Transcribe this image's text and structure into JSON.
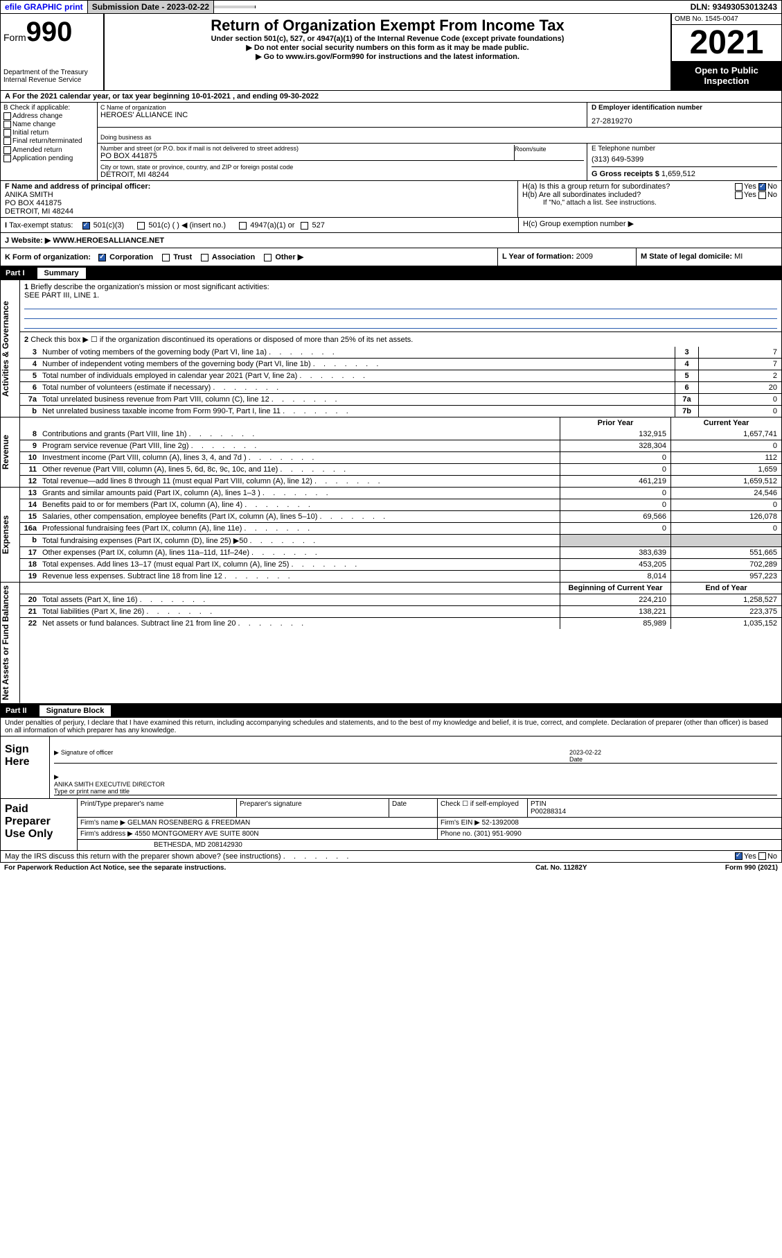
{
  "topbar": {
    "efile": "efile GRAPHIC print",
    "submission_label": "Submission Date - ",
    "submission_date": "2023-02-22",
    "dln_label": "DLN: ",
    "dln": "93493053013243"
  },
  "header": {
    "form_label": "Form",
    "form_num": "990",
    "dept": "Department of the Treasury\nInternal Revenue Service",
    "title": "Return of Organization Exempt From Income Tax",
    "subtitle": "Under section 501(c), 527, or 4947(a)(1) of the Internal Revenue Code (except private foundations)",
    "ssn_warn": "▶ Do not enter social security numbers on this form as it may be made public.",
    "goto": "▶ Go to www.irs.gov/Form990 for instructions and the latest information.",
    "omb": "OMB No. 1545-0047",
    "year": "2021",
    "open": "Open to Public Inspection"
  },
  "A": {
    "text": "For the 2021 calendar year, or tax year beginning 10-01-2021    , and ending 09-30-2022"
  },
  "B": {
    "header": "B Check if applicable:",
    "items": [
      "Address change",
      "Name change",
      "Initial return",
      "Final return/terminated",
      "Amended return",
      "Application pending"
    ]
  },
  "C": {
    "name_label": "C Name of organization",
    "name": "HEROES' ALLIANCE INC",
    "dba_label": "Doing business as",
    "street_label": "Number and street (or P.O. box if mail is not delivered to street address)",
    "room_label": "Room/suite",
    "street": "PO BOX 441875",
    "city_label": "City or town, state or province, country, and ZIP or foreign postal code",
    "city": "DETROIT, MI  48244"
  },
  "D": {
    "label": "D Employer identification number",
    "value": "27-2819270"
  },
  "E": {
    "label": "E Telephone number",
    "value": "(313) 649-5399"
  },
  "G": {
    "label": "G Gross receipts $",
    "value": "1,659,512"
  },
  "F": {
    "label": "F  Name and address of principal officer:",
    "name": "ANIKA SMITH",
    "street": "PO BOX 441875",
    "city": "DETROIT, MI  48244"
  },
  "H": {
    "a": "H(a)  Is this a group return for subordinates?",
    "a_yes": "Yes",
    "a_no": "No",
    "b": "H(b)  Are all subordinates included?",
    "b_yes": "Yes",
    "b_no": "No",
    "b_note": "If \"No,\" attach a list. See instructions.",
    "c": "H(c)  Group exemption number ▶"
  },
  "I": {
    "label": "Tax-exempt status:",
    "opts": [
      "501(c)(3)",
      "501(c) (  ) ◀ (insert no.)",
      "4947(a)(1) or",
      "527"
    ]
  },
  "J": {
    "label": "Website: ▶",
    "value": "WWW.HEROESALLIANCE.NET"
  },
  "K": {
    "label": "K Form of organization:",
    "opts": [
      "Corporation",
      "Trust",
      "Association",
      "Other ▶"
    ]
  },
  "L": {
    "label": "L Year of formation:",
    "value": "2009"
  },
  "M": {
    "label": "M State of legal domicile:",
    "value": "MI"
  },
  "partI": {
    "label": "Part I",
    "title": "Summary"
  },
  "summary": {
    "sections": {
      "gov": "Activities & Governance",
      "rev": "Revenue",
      "exp": "Expenses",
      "net": "Net Assets or Fund Balances"
    },
    "line1_label": "Briefly describe the organization's mission or most significant activities:",
    "line1_text": "SEE PART III, LINE 1.",
    "line2": "Check this box ▶ ☐  if the organization discontinued its operations or disposed of more than 25% of its net assets.",
    "lines_gov": [
      {
        "n": "3",
        "t": "Number of voting members of the governing body (Part VI, line 1a)",
        "box": "3",
        "v": "7"
      },
      {
        "n": "4",
        "t": "Number of independent voting members of the governing body (Part VI, line 1b)",
        "box": "4",
        "v": "7"
      },
      {
        "n": "5",
        "t": "Total number of individuals employed in calendar year 2021 (Part V, line 2a)",
        "box": "5",
        "v": "2"
      },
      {
        "n": "6",
        "t": "Total number of volunteers (estimate if necessary)",
        "box": "6",
        "v": "20"
      },
      {
        "n": "7a",
        "t": "Total unrelated business revenue from Part VIII, column (C), line 12",
        "box": "7a",
        "v": "0"
      },
      {
        "n": "b",
        "t": "Net unrelated business taxable income from Form 990-T, Part I, line 11",
        "box": "7b",
        "v": "0"
      }
    ],
    "col_hdr": {
      "prior": "Prior Year",
      "current": "Current Year"
    },
    "lines_rev": [
      {
        "n": "8",
        "t": "Contributions and grants (Part VIII, line 1h)",
        "p": "132,915",
        "c": "1,657,741"
      },
      {
        "n": "9",
        "t": "Program service revenue (Part VIII, line 2g)",
        "p": "328,304",
        "c": "0"
      },
      {
        "n": "10",
        "t": "Investment income (Part VIII, column (A), lines 3, 4, and 7d )",
        "p": "0",
        "c": "112"
      },
      {
        "n": "11",
        "t": "Other revenue (Part VIII, column (A), lines 5, 6d, 8c, 9c, 10c, and 11e)",
        "p": "0",
        "c": "1,659"
      },
      {
        "n": "12",
        "t": "Total revenue—add lines 8 through 11 (must equal Part VIII, column (A), line 12)",
        "p": "461,219",
        "c": "1,659,512"
      }
    ],
    "lines_exp": [
      {
        "n": "13",
        "t": "Grants and similar amounts paid (Part IX, column (A), lines 1–3 )",
        "p": "0",
        "c": "24,546"
      },
      {
        "n": "14",
        "t": "Benefits paid to or for members (Part IX, column (A), line 4)",
        "p": "0",
        "c": "0"
      },
      {
        "n": "15",
        "t": "Salaries, other compensation, employee benefits (Part IX, column (A), lines 5–10)",
        "p": "69,566",
        "c": "126,078"
      },
      {
        "n": "16a",
        "t": "Professional fundraising fees (Part IX, column (A), line 11e)",
        "p": "0",
        "c": "0"
      },
      {
        "n": "b",
        "t": "Total fundraising expenses (Part IX, column (D), line 25) ▶50",
        "p": "",
        "c": "",
        "shade": true
      },
      {
        "n": "17",
        "t": "Other expenses (Part IX, column (A), lines 11a–11d, 11f–24e)",
        "p": "383,639",
        "c": "551,665"
      },
      {
        "n": "18",
        "t": "Total expenses. Add lines 13–17 (must equal Part IX, column (A), line 25)",
        "p": "453,205",
        "c": "702,289"
      },
      {
        "n": "19",
        "t": "Revenue less expenses. Subtract line 18 from line 12",
        "p": "8,014",
        "c": "957,223"
      }
    ],
    "net_hdr": {
      "begin": "Beginning of Current Year",
      "end": "End of Year"
    },
    "lines_net": [
      {
        "n": "20",
        "t": "Total assets (Part X, line 16)",
        "p": "224,210",
        "c": "1,258,527"
      },
      {
        "n": "21",
        "t": "Total liabilities (Part X, line 26)",
        "p": "138,221",
        "c": "223,375"
      },
      {
        "n": "22",
        "t": "Net assets or fund balances. Subtract line 21 from line 20",
        "p": "85,989",
        "c": "1,035,152"
      }
    ]
  },
  "partII": {
    "label": "Part II",
    "title": "Signature Block"
  },
  "sigtext": "Under penalties of perjury, I declare that I have examined this return, including accompanying schedules and statements, and to the best of my knowledge and belief, it is true, correct, and complete. Declaration of preparer (other than officer) is based on all information of which preparer has any knowledge.",
  "sign": {
    "label": "Sign Here",
    "sig_label": "Signature of officer",
    "date_label": "Date",
    "date": "2023-02-22",
    "name_label": "Type or print name and title",
    "name": "ANIKA SMITH  EXECUTIVE DIRECTOR"
  },
  "paid": {
    "label": "Paid Preparer Use Only",
    "row1": {
      "c1": "Print/Type preparer's name",
      "c2": "Preparer's signature",
      "c3": "Date",
      "c4": "Check ☐ if self-employed",
      "c5": "PTIN",
      "ptin": "P00288314"
    },
    "firm_label": "Firm's name    ▶",
    "firm": "GELMAN ROSENBERG & FREEDMAN",
    "ein_label": "Firm's EIN ▶",
    "ein": "52-1392008",
    "addr_label": "Firm's address ▶",
    "addr1": "4550 MONTGOMERY AVE SUITE 800N",
    "addr2": "BETHESDA, MD  208142930",
    "phone_label": "Phone no.",
    "phone": "(301) 951-9090"
  },
  "discuss": {
    "text": "May the IRS discuss this return with the preparer shown above? (see instructions)",
    "yes": "Yes",
    "no": "No"
  },
  "footer": {
    "pra": "For Paperwork Reduction Act Notice, see the separate instructions.",
    "cat": "Cat. No. 11282Y",
    "form": "Form 990 (2021)"
  }
}
